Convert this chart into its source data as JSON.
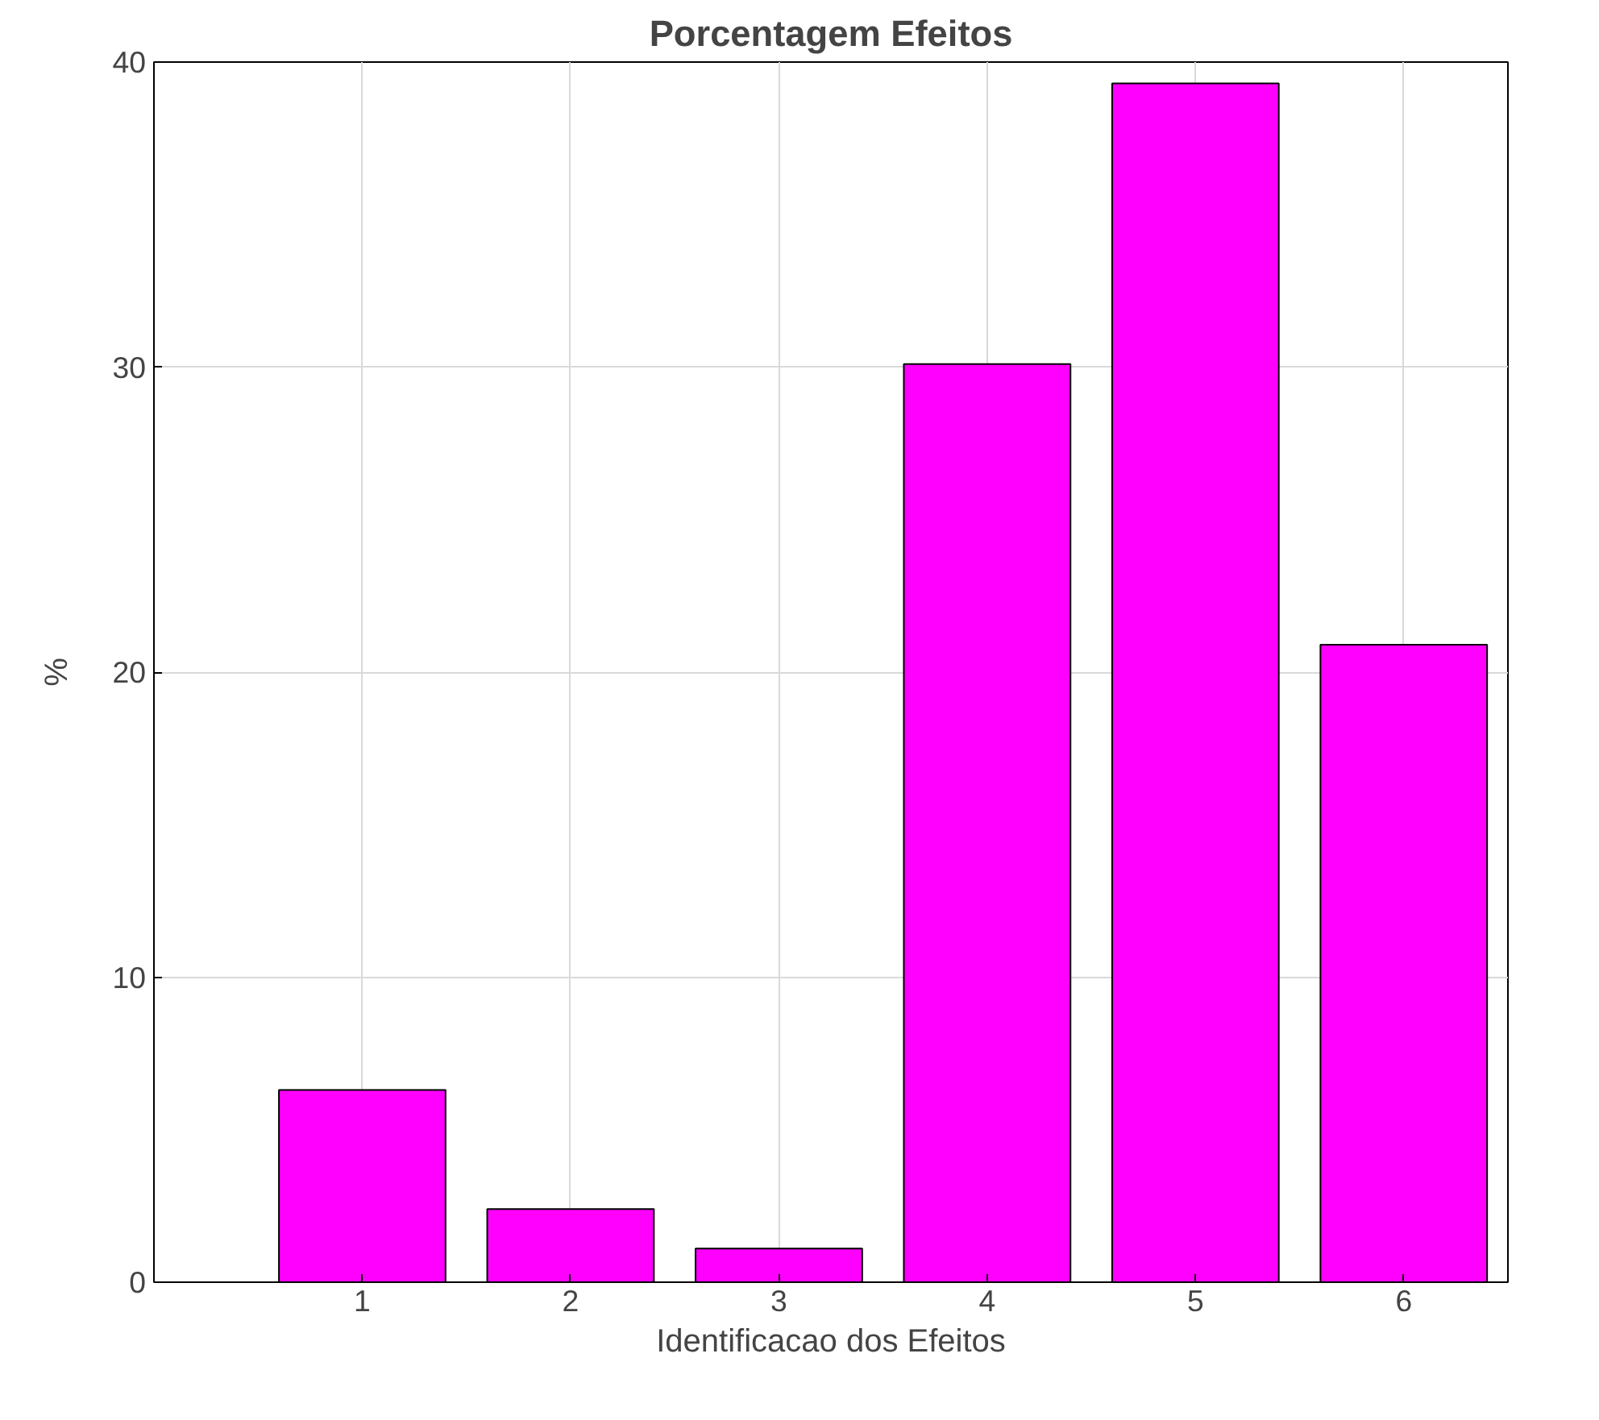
{
  "chart_data": {
    "type": "bar",
    "title": "Porcentagem Efeitos",
    "xlabel": "Identificacao dos Efeitos",
    "ylabel": "%",
    "x": [
      1,
      2,
      3,
      4,
      5,
      6
    ],
    "values": [
      6.3,
      2.4,
      1.1,
      30.1,
      39.3,
      20.9
    ],
    "color": "#ff00ff",
    "xlim": [
      0,
      6.5
    ],
    "xticks": [
      1,
      2,
      3,
      4,
      5,
      6
    ],
    "ylim": [
      0,
      40
    ],
    "yticks": [
      0,
      10,
      20,
      30,
      40
    ],
    "grid": true
  }
}
